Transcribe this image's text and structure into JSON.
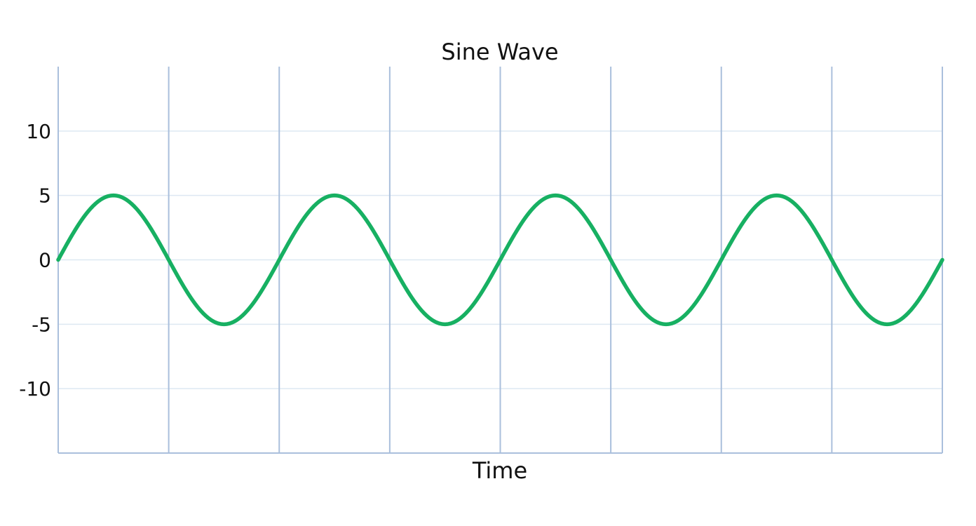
{
  "chart_data": {
    "type": "line",
    "title": "Sine Wave",
    "xlabel": "Time",
    "ylabel": "",
    "x_range": [
      0,
      8
    ],
    "x_vertical_grid_at": [
      0,
      1,
      2,
      3,
      4,
      5,
      6,
      7,
      8
    ],
    "ylim": [
      -15,
      15
    ],
    "y_ticks": [
      10,
      5,
      0,
      -5,
      -10
    ],
    "y_tick_labels": [
      "10",
      "5",
      "0",
      "-5",
      "-10"
    ],
    "grid": true,
    "legend": "none",
    "series": [
      {
        "color": "#17b062",
        "amplitude": 5,
        "period": 2,
        "x": [
          0,
          0.5,
          1,
          1.5,
          2,
          2.5,
          3,
          3.5,
          4,
          4.5,
          5,
          5.5,
          6,
          6.5,
          7,
          7.5,
          8
        ],
        "y": [
          0,
          5,
          0,
          -5,
          0,
          5,
          0,
          -5,
          0,
          5,
          0,
          -5,
          0,
          5,
          0,
          -5,
          0
        ]
      }
    ],
    "colors": {
      "grid": "#aabfdc",
      "grid_horizontal": "#dde8f2",
      "series": "#17b062",
      "text": "#111111"
    }
  }
}
